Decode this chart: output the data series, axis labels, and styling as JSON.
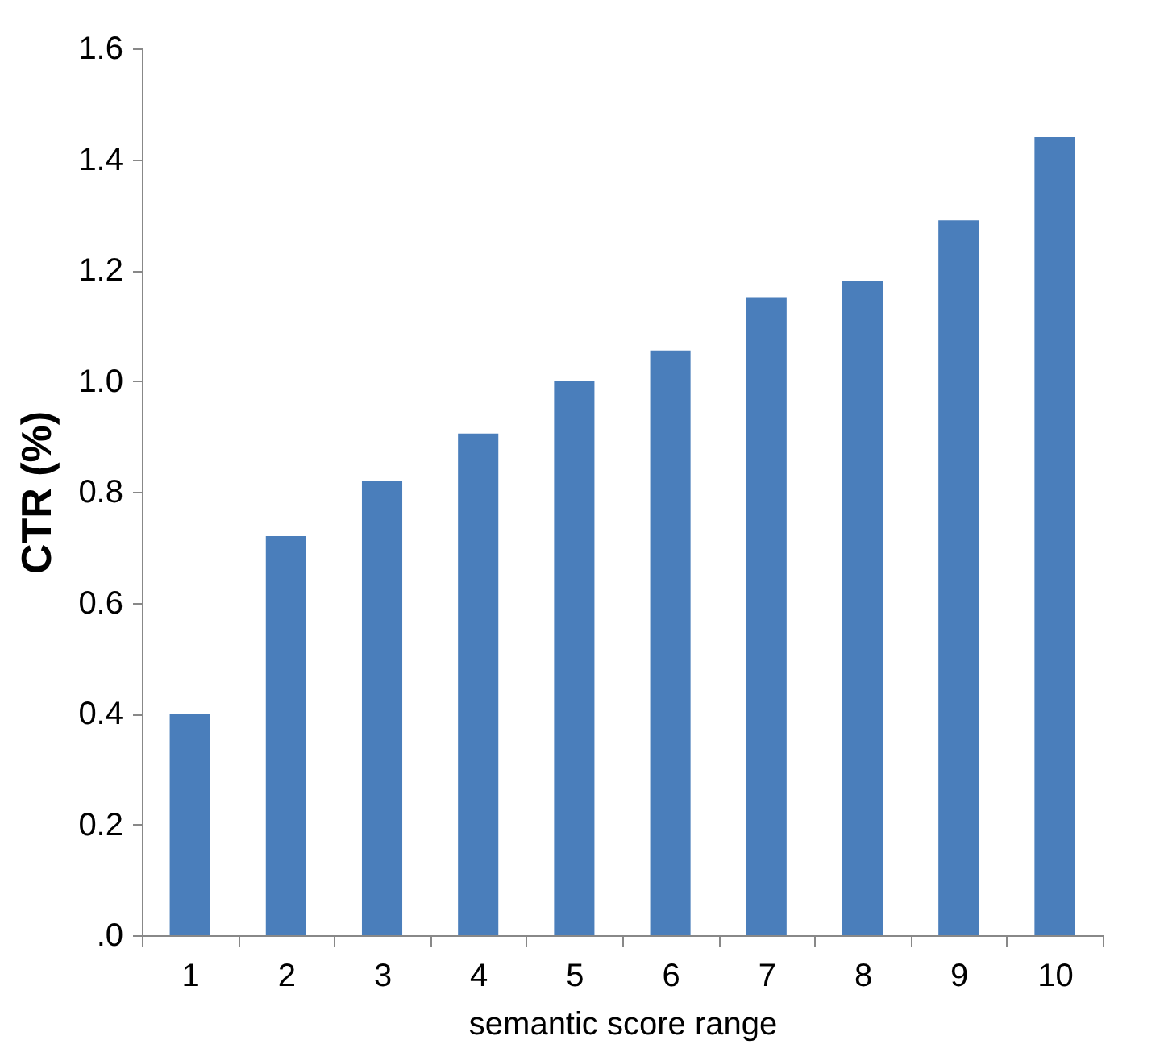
{
  "chart_data": {
    "type": "bar",
    "xlabel": "semantic score range",
    "ylabel": "CTR (%)",
    "categories": [
      "1",
      "2",
      "3",
      "4",
      "5",
      "6",
      "7",
      "8",
      "9",
      "10"
    ],
    "values": [
      0.4,
      0.72,
      0.82,
      0.905,
      1.0,
      1.055,
      1.15,
      1.18,
      1.29,
      1.44
    ],
    "color": "#4a7ebb",
    "ylim": [
      0,
      1.6
    ],
    "yticks": [
      {
        "value": 0,
        "label": ".0"
      },
      0.2,
      0.4,
      0.6,
      0.8,
      {
        "value": 1,
        "label": "1.0"
      },
      1.2,
      1.4,
      1.6
    ],
    "grid": false
  }
}
